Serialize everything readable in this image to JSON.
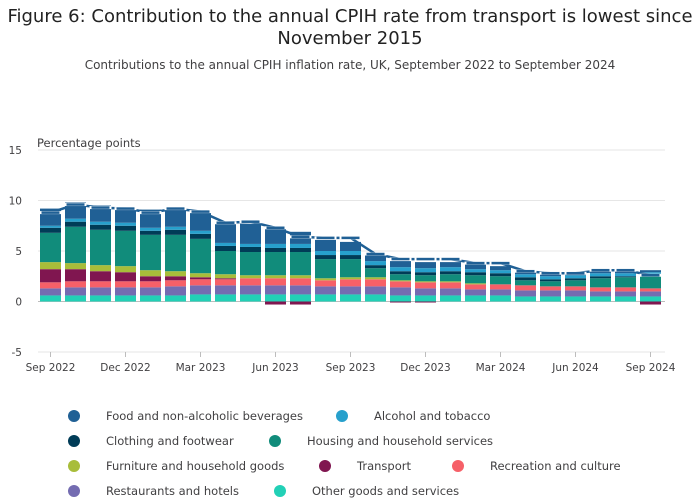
{
  "title": "Figure 6: Contribution to the annual CPIH rate from transport is lowest since November 2015",
  "subtitle": "Contributions to the annual CPIH inflation rate, UK, September 2022 to September 2024",
  "chart_data": {
    "type": "bar",
    "stacked": true,
    "ylabel": "Percentage points",
    "ylim": [
      -5,
      15
    ],
    "yticks": [
      -5,
      0,
      5,
      10,
      15
    ],
    "grid": true,
    "legend_position": "bottom",
    "categories": [
      "Sep 2022",
      "Oct 2022",
      "Nov 2022",
      "Dec 2022",
      "Jan 2023",
      "Feb 2023",
      "Mar 2023",
      "Apr 2023",
      "May 2023",
      "Jun 2023",
      "Jul 2023",
      "Aug 2023",
      "Sep 2023",
      "Oct 2023",
      "Nov 2023",
      "Dec 2023",
      "Jan 2024",
      "Feb 2024",
      "Mar 2024",
      "Apr 2024",
      "May 2024",
      "Jun 2024",
      "Jul 2024",
      "Aug 2024",
      "Sep 2024"
    ],
    "x_tick_labels": [
      "Sep 2022",
      "Dec 2022",
      "Mar 2023",
      "Jun 2023",
      "Sep 2023",
      "Dec 2023",
      "Mar 2024",
      "Jun 2024",
      "Sep 2024"
    ],
    "series": [
      {
        "name": "Other goods and services",
        "color": "#22d0b6",
        "values": [
          0.6,
          0.6,
          0.6,
          0.6,
          0.6,
          0.6,
          0.7,
          0.7,
          0.7,
          0.7,
          0.7,
          0.7,
          0.7,
          0.7,
          0.6,
          0.6,
          0.6,
          0.6,
          0.6,
          0.5,
          0.5,
          0.5,
          0.5,
          0.5,
          0.5
        ]
      },
      {
        "name": "Restaurants and hotels",
        "color": "#746cb1",
        "values": [
          0.7,
          0.8,
          0.8,
          0.8,
          0.8,
          0.9,
          0.9,
          0.9,
          0.9,
          0.9,
          0.9,
          0.8,
          0.8,
          0.8,
          0.8,
          0.7,
          0.7,
          0.6,
          0.6,
          0.6,
          0.6,
          0.6,
          0.5,
          0.5,
          0.5
        ]
      },
      {
        "name": "Recreation and culture",
        "color": "#f66068",
        "values": [
          0.6,
          0.6,
          0.6,
          0.6,
          0.6,
          0.6,
          0.6,
          0.6,
          0.7,
          0.7,
          0.7,
          0.6,
          0.7,
          0.7,
          0.6,
          0.6,
          0.6,
          0.5,
          0.5,
          0.5,
          0.4,
          0.4,
          0.4,
          0.4,
          0.3
        ]
      },
      {
        "name": "Transport",
        "color": "#801650",
        "values": [
          1.3,
          1.2,
          1.0,
          0.9,
          0.5,
          0.4,
          0.2,
          0.1,
          0.0,
          -0.3,
          -0.3,
          0.0,
          0.0,
          0.0,
          -0.1,
          -0.1,
          0.0,
          0.0,
          0.0,
          0.0,
          0.0,
          0.0,
          0.0,
          0.0,
          -0.3
        ]
      },
      {
        "name": "Furniture and household goods",
        "color": "#a8bd3a",
        "values": [
          0.7,
          0.6,
          0.6,
          0.6,
          0.6,
          0.5,
          0.4,
          0.4,
          0.3,
          0.3,
          0.3,
          0.2,
          0.2,
          0.2,
          0.1,
          0.1,
          0.1,
          0.1,
          0.0,
          0.0,
          0.0,
          0.0,
          0.0,
          0.0,
          0.0
        ]
      },
      {
        "name": "Housing and household services",
        "color": "#118c7b",
        "values": [
          2.9,
          3.6,
          3.5,
          3.5,
          3.5,
          3.6,
          3.4,
          2.3,
          2.3,
          2.3,
          2.3,
          1.9,
          1.8,
          0.9,
          0.6,
          0.6,
          0.7,
          0.8,
          0.8,
          0.5,
          0.5,
          0.6,
          0.9,
          1.0,
          1.2
        ]
      },
      {
        "name": "Clothing and footwear",
        "color": "#003c57",
        "values": [
          0.5,
          0.5,
          0.5,
          0.5,
          0.4,
          0.5,
          0.5,
          0.5,
          0.5,
          0.4,
          0.4,
          0.4,
          0.4,
          0.3,
          0.3,
          0.3,
          0.3,
          0.3,
          0.3,
          0.3,
          0.2,
          0.2,
          0.2,
          0.1,
          0.1
        ]
      },
      {
        "name": "Alcohol and tobacco",
        "color": "#27a0cc",
        "values": [
          0.2,
          0.3,
          0.3,
          0.3,
          0.3,
          0.3,
          0.3,
          0.3,
          0.3,
          0.4,
          0.4,
          0.4,
          0.4,
          0.4,
          0.4,
          0.4,
          0.4,
          0.3,
          0.3,
          0.3,
          0.3,
          0.3,
          0.3,
          0.3,
          0.3
        ]
      },
      {
        "name": "Food and non-alcoholic beverages",
        "color": "#206095",
        "values": [
          1.7,
          1.6,
          1.6,
          1.5,
          1.8,
          1.8,
          1.9,
          1.9,
          2.0,
          1.6,
          1.2,
          1.1,
          0.9,
          0.6,
          0.6,
          0.6,
          0.5,
          0.5,
          0.4,
          0.3,
          0.3,
          0.2,
          0.2,
          0.2,
          0.2
        ]
      }
    ],
    "total_line": {
      "name": "CPIH",
      "color": "#206095",
      "values": [
        8.8,
        9.6,
        9.3,
        9.2,
        8.8,
        9.2,
        8.9,
        7.8,
        7.9,
        7.3,
        6.4,
        6.3,
        6.3,
        4.7,
        4.2,
        4.2,
        4.2,
        3.8,
        3.8,
        3.0,
        2.8,
        2.8,
        3.1,
        3.1,
        2.6
      ]
    }
  },
  "legend": [
    {
      "label": "Food and non-alcoholic beverages",
      "color": "#206095"
    },
    {
      "label": "Alcohol and tobacco",
      "color": "#27a0cc"
    },
    {
      "label": "Clothing and footwear",
      "color": "#003c57"
    },
    {
      "label": "Housing and household services",
      "color": "#118c7b"
    },
    {
      "label": "Furniture and household goods",
      "color": "#a8bd3a"
    },
    {
      "label": "Transport",
      "color": "#801650"
    },
    {
      "label": "Recreation and culture",
      "color": "#f66068"
    },
    {
      "label": "Restaurants and hotels",
      "color": "#746cb1"
    },
    {
      "label": "Other goods and services",
      "color": "#22d0b6"
    }
  ]
}
